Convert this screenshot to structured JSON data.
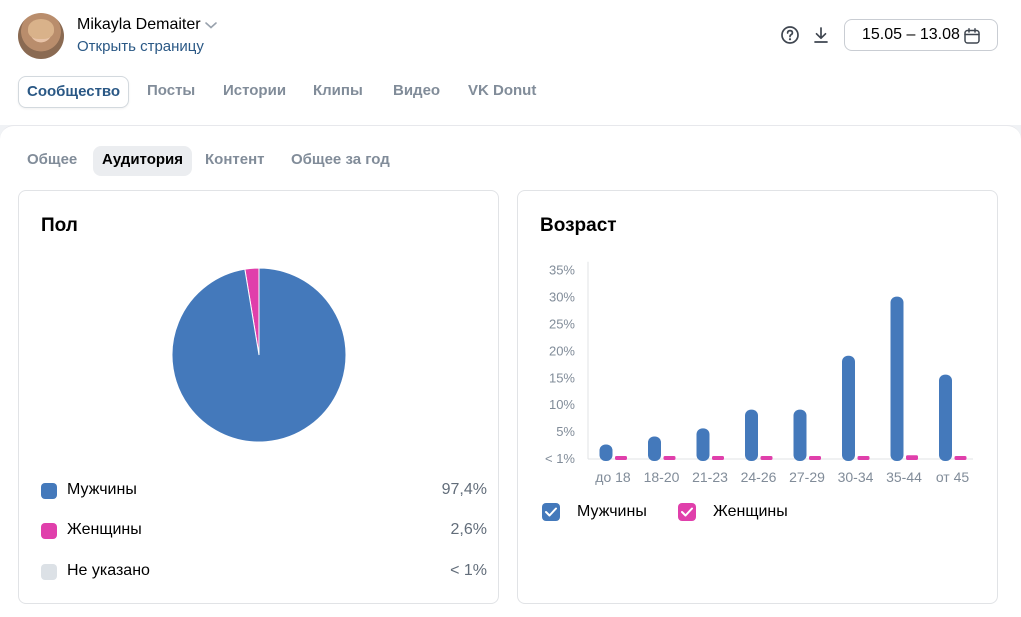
{
  "header": {
    "user_name": "Mikayla Demaiter",
    "open_page": "Открыть страницу",
    "date_range": "15.05 – 13.08"
  },
  "tabs": [
    {
      "label": "Сообщество",
      "active": true
    },
    {
      "label": "Посты",
      "active": false
    },
    {
      "label": "Истории",
      "active": false
    },
    {
      "label": "Клипы",
      "active": false
    },
    {
      "label": "Видео",
      "active": false
    },
    {
      "label": "VK Donut",
      "active": false
    }
  ],
  "subtabs": [
    {
      "label": "Общее",
      "active": false
    },
    {
      "label": "Аудитория",
      "active": true
    },
    {
      "label": "Контент",
      "active": false
    },
    {
      "label": "Общее за год",
      "active": false
    }
  ],
  "gender": {
    "title": "Пол",
    "items": [
      {
        "label": "Мужчины",
        "value": "97,4%",
        "color": "#4479bb"
      },
      {
        "label": "Женщины",
        "value": "2,6%",
        "color": "#e03fab"
      },
      {
        "label": "Не указано",
        "value": "< 1%",
        "color": "#dce1e6"
      }
    ]
  },
  "age": {
    "title": "Возраст",
    "legend": [
      {
        "label": "Мужчины",
        "color": "#4479bb",
        "checked": true
      },
      {
        "label": "Женщины",
        "color": "#e03fab",
        "checked": true
      }
    ]
  },
  "chart_data": [
    {
      "type": "pie",
      "title": "Пол",
      "categories": [
        "Мужчины",
        "Женщины",
        "Не указано"
      ],
      "values": [
        97.4,
        2.6,
        0
      ],
      "colors": [
        "#4479bb",
        "#e03fab",
        "#dce1e6"
      ]
    },
    {
      "type": "bar",
      "title": "Возраст",
      "categories": [
        "до 18",
        "18-20",
        "21-23",
        "24-26",
        "27-29",
        "30-34",
        "35-44",
        "от 45"
      ],
      "series": [
        {
          "name": "Мужчины",
          "color": "#4479bb",
          "values": [
            2.5,
            4,
            5.5,
            9,
            9,
            19,
            30,
            15.5
          ]
        },
        {
          "name": "Женщины",
          "color": "#e03fab",
          "values": [
            0.3,
            0.3,
            0.3,
            0.3,
            0.3,
            0.5,
            0.7,
            0.5
          ]
        }
      ],
      "yticks": [
        "< 1%",
        "5%",
        "10%",
        "15%",
        "20%",
        "25%",
        "30%",
        "35%"
      ],
      "ylim": [
        0,
        35
      ]
    }
  ]
}
